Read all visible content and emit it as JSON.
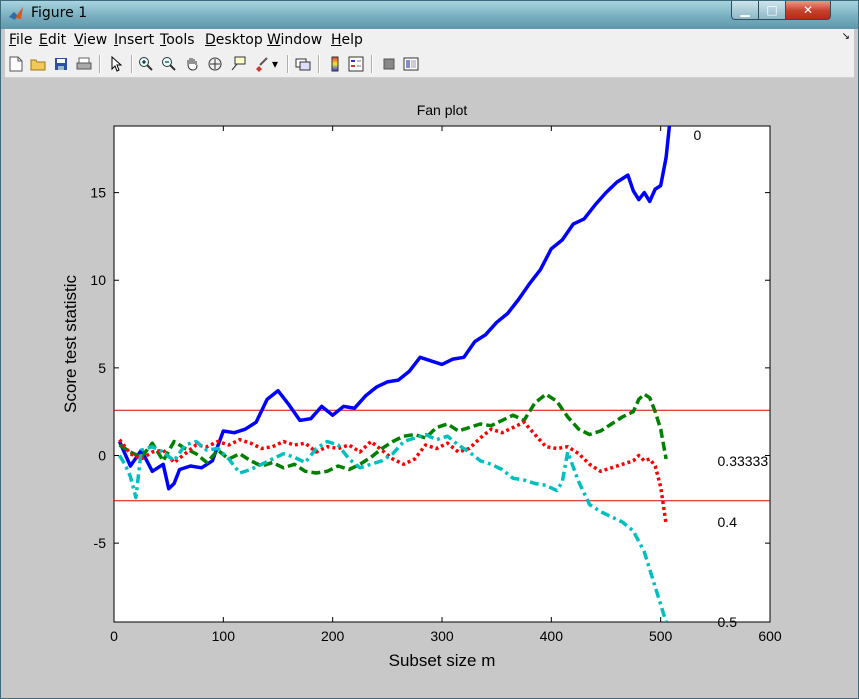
{
  "window": {
    "title": "Figure 1"
  },
  "menu": {
    "items": [
      {
        "key": "F",
        "rest": "ile"
      },
      {
        "key": "E",
        "rest": "dit"
      },
      {
        "key": "V",
        "rest": "iew"
      },
      {
        "key": "I",
        "rest": "nsert"
      },
      {
        "key": "T",
        "rest": "ools"
      },
      {
        "key": "D",
        "rest": "esktop"
      },
      {
        "key": "W",
        "rest": "indow"
      },
      {
        "key": "H",
        "rest": "elp"
      }
    ]
  },
  "toolbar": {
    "icons": [
      "new-figure-icon",
      "open-file-icon",
      "save-icon",
      "print-icon",
      "pointer-icon",
      "zoom-in-icon",
      "zoom-out-icon",
      "pan-icon",
      "rotate-3d-icon",
      "data-cursor-icon",
      "brush-icon",
      "link-plot-icon",
      "colorbar-icon",
      "legend-icon",
      "hide-plot-tools-icon",
      "show-plot-tools-icon"
    ]
  },
  "chart_data": {
    "type": "line",
    "title": "Fan plot",
    "xlabel": "Subset size m",
    "ylabel": "Score test statistic",
    "xlim": [
      0,
      600
    ],
    "ylim": [
      -9.5,
      18.8
    ],
    "xticks": [
      "0",
      "100",
      "200",
      "300",
      "400",
      "500",
      "600"
    ],
    "yticks": [
      "-5",
      "0",
      "5",
      "10",
      "15"
    ],
    "xtick_values": [
      0,
      100,
      200,
      300,
      400,
      500,
      600
    ],
    "ytick_values": [
      -5,
      0,
      5,
      10,
      15
    ],
    "reference_lines": [
      2.58,
      -2.58
    ],
    "reference_color": "#e00000",
    "series": [
      {
        "name": "0",
        "color": "#0000ff",
        "style": "solid",
        "x": [
          5,
          15,
          25,
          35,
          45,
          50,
          55,
          60,
          70,
          80,
          90,
          100,
          110,
          120,
          130,
          140,
          150,
          160,
          170,
          180,
          190,
          200,
          210,
          220,
          230,
          240,
          250,
          260,
          270,
          280,
          290,
          300,
          310,
          320,
          330,
          340,
          350,
          360,
          370,
          380,
          390,
          400,
          410,
          420,
          430,
          440,
          450,
          460,
          470,
          475,
          480,
          485,
          490,
          495,
          500,
          505,
          508
        ],
        "y": [
          0.8,
          -0.6,
          0.3,
          -0.9,
          -0.5,
          -1.9,
          -1.6,
          -0.8,
          -0.6,
          -0.7,
          -0.3,
          1.4,
          1.3,
          1.5,
          1.9,
          3.2,
          3.7,
          2.9,
          2.0,
          2.1,
          2.8,
          2.3,
          2.8,
          2.7,
          3.4,
          3.9,
          4.2,
          4.3,
          4.8,
          5.6,
          5.4,
          5.2,
          5.5,
          5.6,
          6.5,
          6.9,
          7.6,
          8.1,
          8.9,
          9.8,
          10.6,
          11.8,
          12.3,
          13.2,
          13.5,
          14.3,
          15.0,
          15.6,
          16.0,
          15.1,
          14.6,
          15.0,
          14.5,
          15.2,
          15.4,
          17.0,
          18.8
        ],
        "label_at": [
          530,
          18.3
        ]
      },
      {
        "name": "0.33333",
        "color": "#008000",
        "style": "dashed",
        "x": [
          5,
          15,
          25,
          35,
          45,
          55,
          65,
          75,
          85,
          95,
          105,
          115,
          125,
          135,
          145,
          155,
          165,
          175,
          185,
          195,
          205,
          215,
          225,
          235,
          245,
          255,
          265,
          275,
          285,
          295,
          305,
          315,
          325,
          335,
          345,
          355,
          365,
          375,
          385,
          395,
          405,
          415,
          425,
          435,
          445,
          455,
          465,
          475,
          480,
          485,
          490,
          495,
          500,
          505
        ],
        "y": [
          0.6,
          0.2,
          -0.1,
          0.7,
          -0.3,
          0.8,
          0.4,
          0.1,
          -0.4,
          0.3,
          -0.2,
          0.1,
          -0.3,
          -0.6,
          -0.4,
          -0.7,
          -0.5,
          -0.9,
          -1.0,
          -0.9,
          -0.6,
          -0.8,
          -0.5,
          -0.1,
          0.4,
          0.8,
          1.1,
          1.2,
          1.0,
          1.6,
          1.8,
          1.4,
          1.6,
          1.8,
          1.7,
          2.0,
          2.3,
          2.0,
          3.0,
          3.5,
          3.1,
          2.2,
          1.5,
          1.2,
          1.4,
          1.8,
          2.2,
          2.5,
          3.2,
          3.5,
          3.3,
          2.5,
          1.5,
          -0.2
        ],
        "label_at": [
          552,
          -0.3
        ]
      },
      {
        "name": "0.4",
        "color": "#ff0000",
        "style": "dotted",
        "x": [
          5,
          15,
          25,
          35,
          45,
          55,
          65,
          75,
          85,
          95,
          105,
          115,
          125,
          135,
          145,
          155,
          165,
          175,
          185,
          195,
          205,
          215,
          225,
          235,
          245,
          255,
          265,
          275,
          285,
          295,
          305,
          315,
          325,
          335,
          345,
          355,
          365,
          375,
          385,
          395,
          405,
          415,
          425,
          435,
          445,
          455,
          465,
          475,
          480,
          485,
          490,
          495,
          500,
          505
        ],
        "y": [
          0.9,
          0.1,
          -0.2,
          0.2,
          0.3,
          -0.4,
          0.1,
          0.6,
          0.5,
          0.8,
          0.6,
          0.9,
          0.7,
          0.4,
          0.5,
          0.8,
          0.6,
          0.7,
          0.2,
          0.5,
          0.4,
          0.6,
          0.2,
          0.8,
          0.3,
          -0.2,
          -0.5,
          -0.2,
          0.6,
          0.4,
          0.7,
          0.2,
          0.4,
          1.0,
          1.5,
          1.3,
          1.6,
          1.9,
          1.2,
          0.5,
          0.4,
          0.5,
          0.1,
          -0.5,
          -0.9,
          -0.7,
          -0.5,
          -0.3,
          0.0,
          -0.3,
          -0.2,
          -0.6,
          -1.8,
          -3.9
        ],
        "label_at": [
          552,
          -3.8
        ]
      },
      {
        "name": "0.5",
        "color": "#00bfbf",
        "style": "dashdot",
        "x": [
          5,
          10,
          15,
          20,
          25,
          35,
          45,
          55,
          65,
          75,
          85,
          95,
          105,
          115,
          125,
          135,
          145,
          155,
          165,
          175,
          185,
          195,
          205,
          215,
          225,
          235,
          245,
          255,
          265,
          275,
          285,
          295,
          305,
          315,
          325,
          335,
          345,
          355,
          365,
          375,
          385,
          395,
          405,
          410,
          415,
          425,
          435,
          445,
          455,
          465,
          475,
          485,
          495,
          505
        ],
        "y": [
          0.0,
          -0.5,
          -1.2,
          -2.4,
          0.3,
          0.5,
          0.2,
          -0.3,
          0.6,
          0.8,
          0.3,
          0.4,
          -0.2,
          -1.0,
          -0.8,
          -0.5,
          -0.2,
          0.1,
          -0.1,
          -0.4,
          0.4,
          0.8,
          0.6,
          -0.2,
          -0.7,
          -0.5,
          -0.3,
          0.1,
          0.8,
          1.0,
          1.2,
          0.9,
          1.1,
          0.6,
          0.2,
          -0.3,
          -0.5,
          -0.8,
          -1.3,
          -1.4,
          -1.6,
          -1.7,
          -2.0,
          -1.5,
          0.2,
          -1.5,
          -2.8,
          -3.2,
          -3.5,
          -3.8,
          -4.3,
          -5.5,
          -7.5,
          -9.5
        ],
        "label_at": [
          552,
          -9.5
        ]
      }
    ]
  }
}
